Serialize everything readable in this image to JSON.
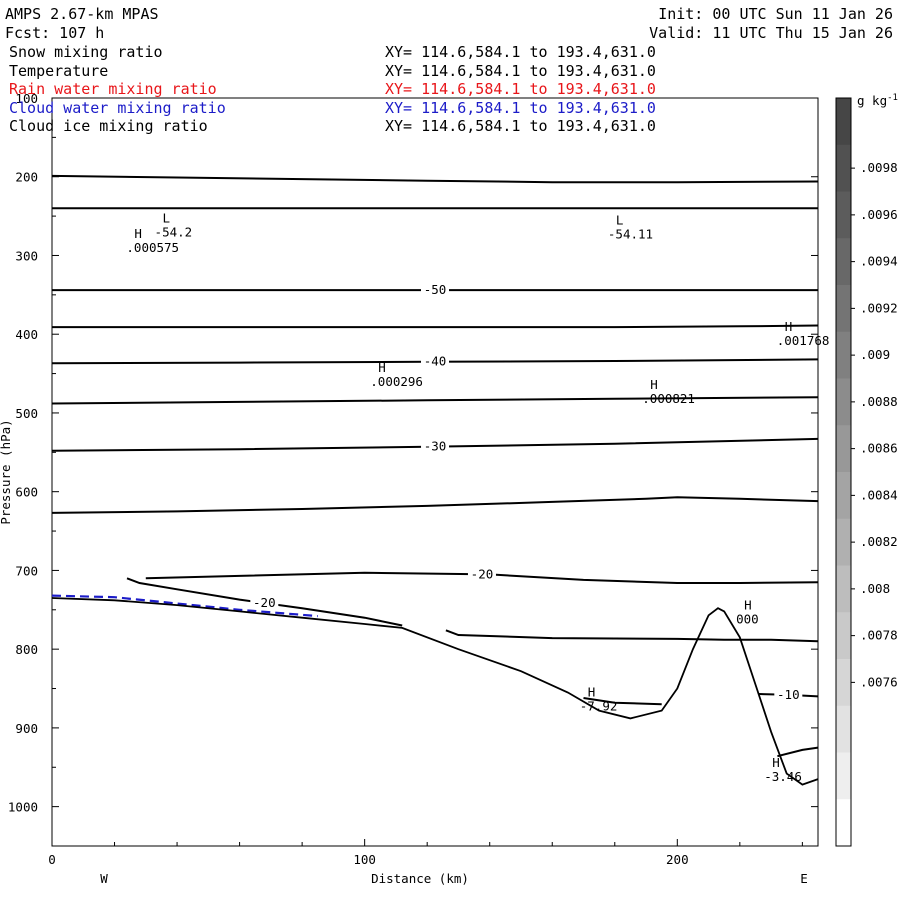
{
  "header": {
    "model": "AMPS 2.67-km MPAS",
    "forecast": "Fcst:  107 h",
    "init": "Init: 00 UTC Sun 11 Jan 26",
    "valid": "Valid: 11 UTC Thu 15 Jan 26"
  },
  "fields": [
    {
      "name": "Snow mixing ratio",
      "xy": "XY= 114.6,584.1 to 193.4,631.0",
      "color": "#000000"
    },
    {
      "name": "Temperature",
      "xy": "XY= 114.6,584.1 to 193.4,631.0",
      "color": "#000000"
    },
    {
      "name": "Rain water mixing ratio",
      "xy": "XY= 114.6,584.1 to 193.4,631.0",
      "color": "#e8161a"
    },
    {
      "name": "Cloud water mixing ratio",
      "xy": "XY= 114.6,584.1 to 193.4,631.0",
      "color": "#1c1cc8"
    },
    {
      "name": "Cloud ice mixing ratio",
      "xy": "XY= 114.6,584.1 to 193.4,631.0",
      "color": "#000000"
    }
  ],
  "colorbar": {
    "unit": "g kg",
    "unit_exp": "-1",
    "labels": [
      ".0098",
      ".0096",
      ".0094",
      ".0092",
      ".009",
      ".0088",
      ".0086",
      ".0084",
      ".0082",
      ".008",
      ".0078",
      ".0076"
    ],
    "colors": [
      "#464646",
      "#515151",
      "#5c5c5c",
      "#686868",
      "#747474",
      "#808080",
      "#8c8c8c",
      "#989898",
      "#a4a4a4",
      "#b0b0b0",
      "#bdbdbd",
      "#c9c9c9",
      "#d6d6d6",
      "#e2e2e2",
      "#eeeeee",
      "#ffffff"
    ]
  },
  "chart_data": {
    "type": "line",
    "title": "",
    "xlabel": "Distance (km)",
    "ylabel": "Pressure (hPa)",
    "xlim": [
      0,
      245
    ],
    "ylim": [
      1050,
      100
    ],
    "x_ticks": [
      0,
      100,
      200
    ],
    "y_ticks": [
      100,
      200,
      300,
      400,
      500,
      600,
      700,
      800,
      900,
      1000
    ],
    "x_ends": [
      "W",
      "E"
    ],
    "isotherms": [
      {
        "value": "",
        "x": [
          0,
          40,
          80,
          120,
          160,
          200,
          245
        ],
        "y": [
          199,
          201,
          203,
          205,
          207,
          207,
          206
        ]
      },
      {
        "value": "",
        "x": [
          0,
          60,
          120,
          180,
          245
        ],
        "y": [
          240,
          240,
          240,
          240,
          240
        ]
      },
      {
        "value": "-50",
        "x": [
          0,
          60,
          120,
          180,
          245
        ],
        "y": [
          344,
          344,
          344,
          344,
          344
        ]
      },
      {
        "value": "",
        "x": [
          0,
          60,
          120,
          180,
          220,
          245
        ],
        "y": [
          391,
          391,
          391,
          391,
          390,
          389
        ]
      },
      {
        "value": "-40",
        "x": [
          0,
          60,
          120,
          180,
          245
        ],
        "y": [
          437,
          436,
          435,
          434,
          432
        ]
      },
      {
        "value": "",
        "x": [
          0,
          60,
          120,
          180,
          245
        ],
        "y": [
          488,
          486,
          484,
          482,
          480
        ]
      },
      {
        "value": "-30",
        "x": [
          0,
          60,
          120,
          180,
          245
        ],
        "y": [
          548,
          546,
          543,
          539,
          533
        ]
      },
      {
        "value": "",
        "x": [
          0,
          40,
          80,
          120,
          160,
          190,
          200,
          220,
          245
        ],
        "y": [
          627,
          625,
          622,
          618,
          613,
          609,
          607,
          609,
          612
        ]
      },
      {
        "value": "-20",
        "x": [
          30,
          60,
          100,
          140,
          170,
          200,
          220,
          245
        ],
        "y": [
          710,
          707,
          703,
          705,
          712,
          716,
          716,
          715
        ]
      },
      {
        "value": "-20",
        "x": [
          24,
          28,
          40,
          60,
          80,
          100,
          112
        ],
        "y": [
          710,
          716,
          724,
          737,
          748,
          760,
          770
        ]
      },
      {
        "value": "",
        "x": [
          126,
          130,
          160,
          200,
          215,
          230,
          245
        ],
        "y": [
          776,
          782,
          786,
          787,
          788,
          788,
          790
        ]
      },
      {
        "value": "",
        "x": [
          170,
          180,
          195
        ],
        "y": [
          862,
          868,
          870
        ]
      },
      {
        "value": "-10",
        "x": [
          226,
          235,
          245
        ],
        "y": [
          857,
          858,
          860
        ]
      },
      {
        "value": "",
        "x": [
          232,
          240,
          245
        ],
        "y": [
          936,
          928,
          925
        ]
      }
    ],
    "cloud_water_contour": {
      "x": [
        0,
        20,
        40,
        60,
        85
      ],
      "y": [
        732,
        734,
        742,
        750,
        758
      ]
    },
    "terrain": {
      "x": [
        0,
        20,
        40,
        60,
        80,
        100,
        112,
        130,
        150,
        165,
        175,
        185,
        195,
        200,
        205,
        210,
        213,
        215,
        220,
        225,
        230,
        235,
        240,
        245
      ],
      "y": [
        735,
        738,
        744,
        752,
        760,
        768,
        773,
        800,
        828,
        855,
        878,
        888,
        878,
        850,
        800,
        757,
        748,
        752,
        785,
        845,
        905,
        958,
        972,
        965
      ]
    },
    "extrema": [
      {
        "type": "L",
        "label": "-54.2",
        "x": 36,
        "y": 268
      },
      {
        "type": "H",
        "label": ".000575",
        "x": 27,
        "y": 288
      },
      {
        "type": "L",
        "label": "-54.11",
        "x": 181,
        "y": 271
      },
      {
        "type": "H",
        "label": ".001768",
        "x": 235,
        "y": 406
      },
      {
        "type": "H",
        "label": ".000296",
        "x": 105,
        "y": 458
      },
      {
        "type": "H",
        "label": ".000821",
        "x": 192,
        "y": 480
      },
      {
        "type": "H",
        "label": "000",
        "x": 222,
        "y": 760
      },
      {
        "type": "H",
        "label": "-7.92",
        "x": 172,
        "y": 870
      },
      {
        "type": "H",
        "label": "-3.46",
        "x": 231,
        "y": 960
      }
    ]
  }
}
